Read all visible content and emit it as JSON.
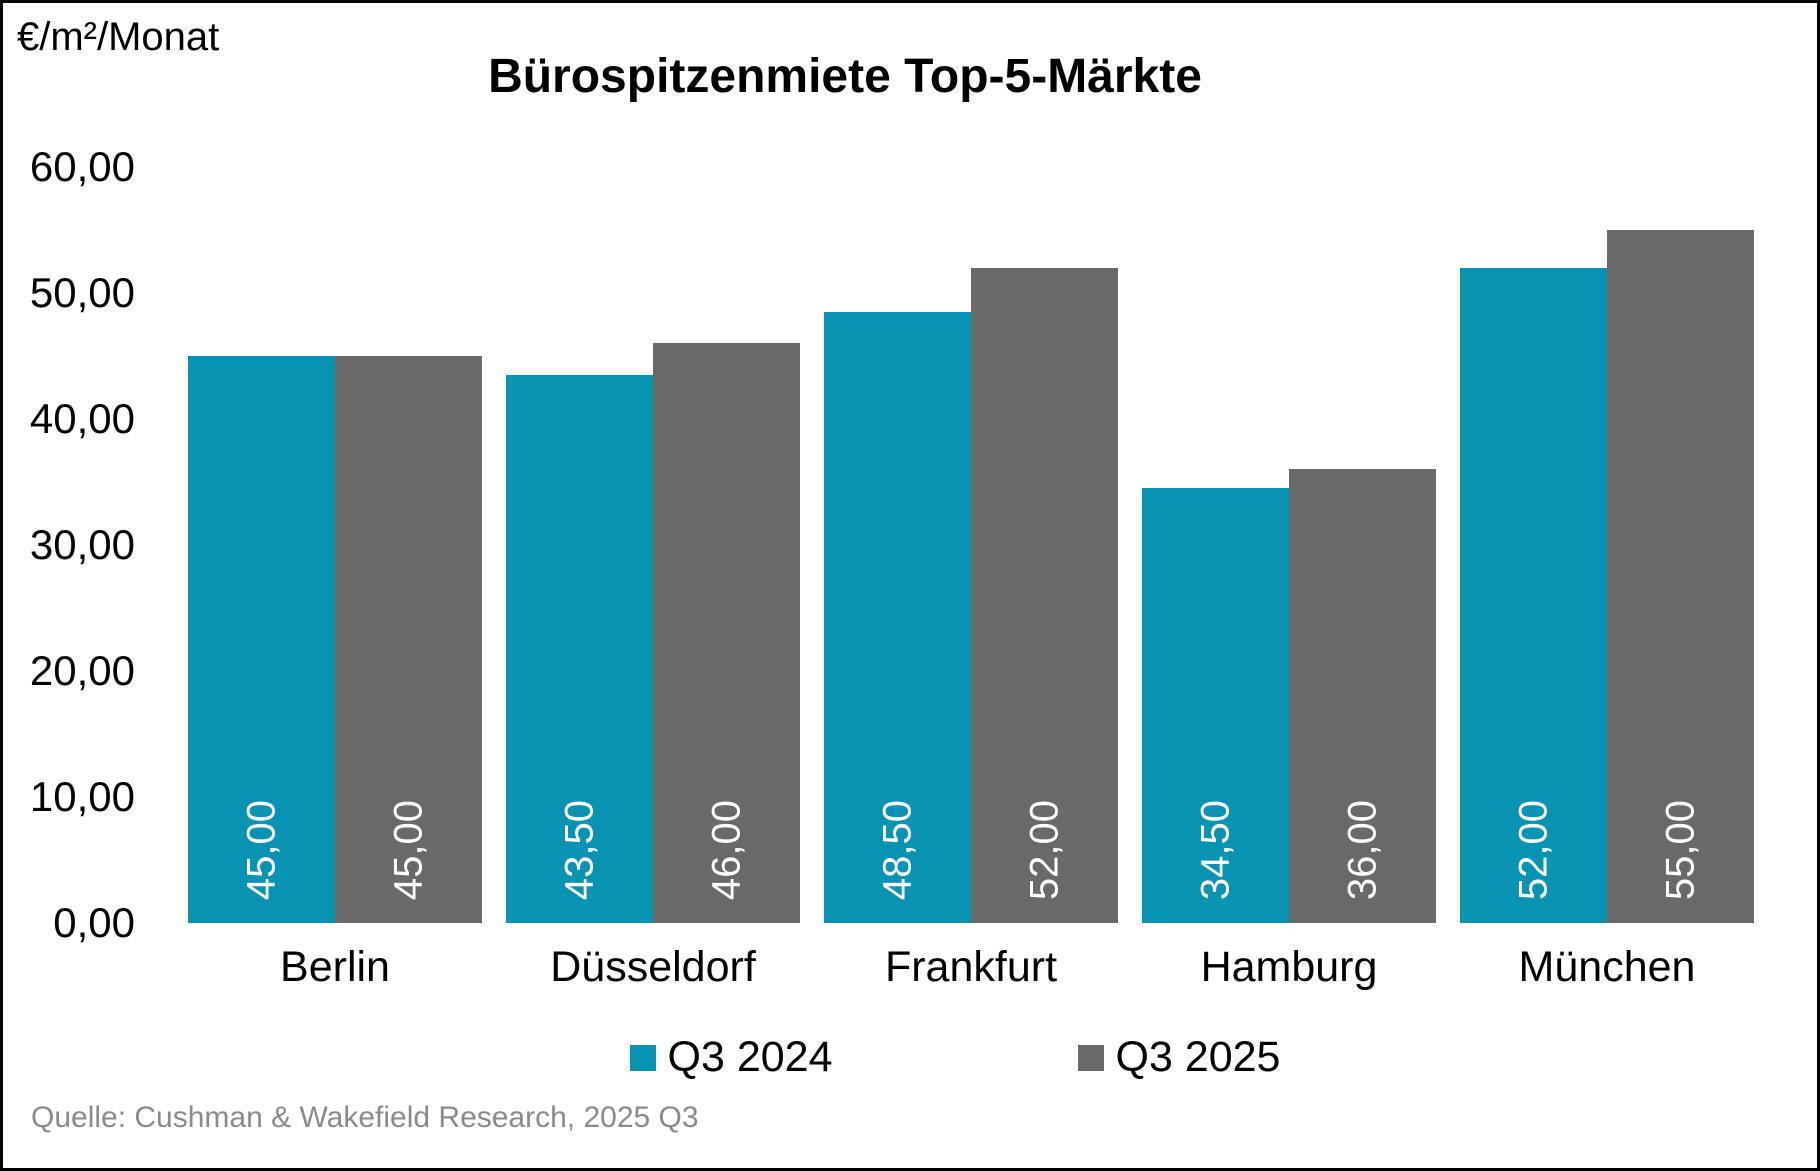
{
  "header": {
    "unit_label": "€/m²/Monat",
    "title": "Bürospitzenmiete Top-5-Märkte"
  },
  "chart_data": {
    "type": "bar",
    "title": "Bürospitzenmiete Top-5-Märkte",
    "ylabel": "€/m²/Monat",
    "ylim": [
      0,
      60
    ],
    "ytick_step": 10,
    "grid": false,
    "legend_position": "bottom",
    "categories": [
      "Berlin",
      "Düsseldorf",
      "Frankfurt",
      "Hamburg",
      "München"
    ],
    "series": [
      {
        "name": "Q3 2024",
        "color": "#0793B1",
        "values": [
          45.0,
          43.5,
          48.5,
          34.5,
          52.0
        ],
        "value_labels": [
          "45,00",
          "43,50",
          "48,50",
          "34,50",
          "52,00"
        ]
      },
      {
        "name": "Q3 2025",
        "color": "#696969",
        "values": [
          45.0,
          46.0,
          52.0,
          36.0,
          55.0
        ],
        "value_labels": [
          "45,00",
          "46,00",
          "52,00",
          "36,00",
          "55,00"
        ]
      }
    ],
    "yticks": [
      {
        "value": 60,
        "label": "60,00"
      },
      {
        "value": 50,
        "label": "50,00"
      },
      {
        "value": 40,
        "label": "40,00"
      },
      {
        "value": 30,
        "label": "30,00"
      },
      {
        "value": 20,
        "label": "20,00"
      },
      {
        "value": 10,
        "label": "10,00"
      },
      {
        "value": 0,
        "label": "0,00"
      }
    ],
    "data_label_rotation_deg": 90,
    "data_label_color": "#FFFFFF"
  },
  "footer": {
    "source": "Quelle: Cushman & Wakefield Research, 2025 Q3"
  }
}
